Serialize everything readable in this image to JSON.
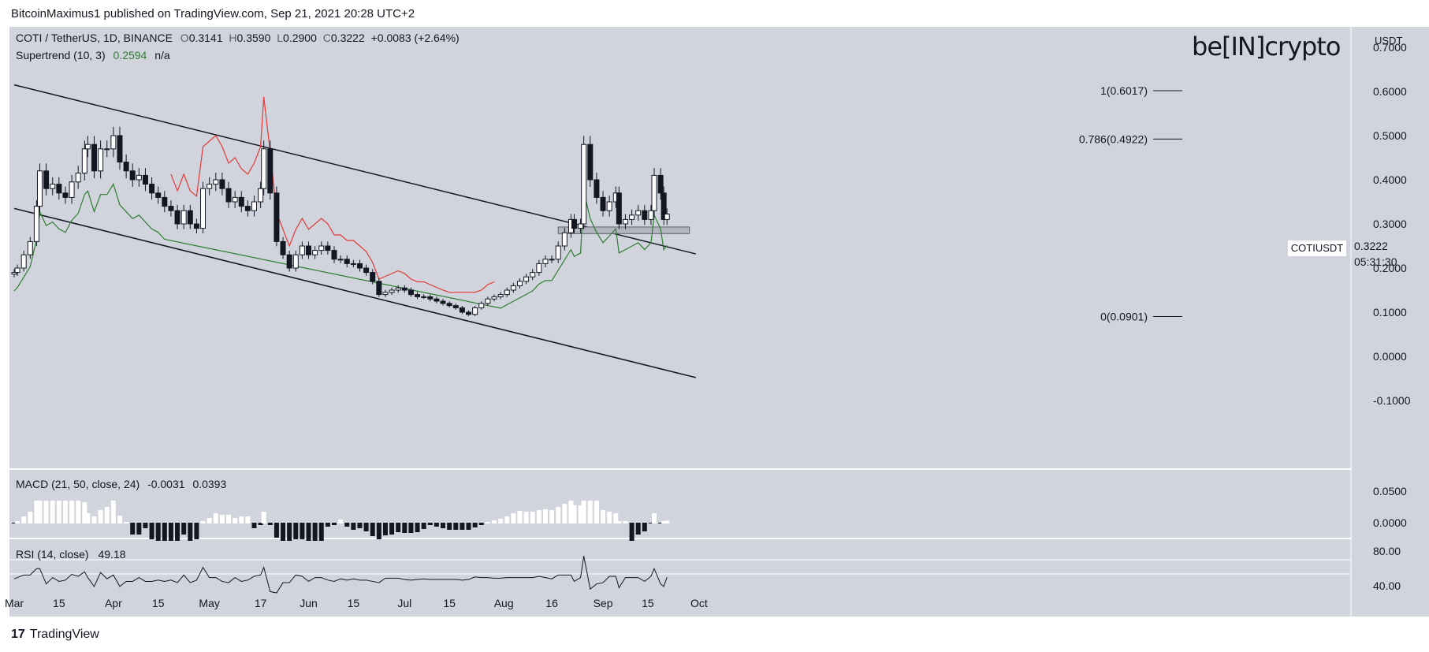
{
  "header": {
    "publish_text": "BitcoinMaximus1 published on TradingView.com, Sep 21, 2021 20:28 UTC+2"
  },
  "footer": {
    "brand": "TradingView"
  },
  "watermark": {
    "text": "be[IN]crypto"
  },
  "colors": {
    "background": "#d1d4dc",
    "candle": "#131722",
    "supertrend_up": "#2e7d32",
    "supertrend_down": "#e53935",
    "support_box": "#b2b5be"
  },
  "chart_data": [
    {
      "type": "candlestick",
      "title": "COTI / TetherUS, 1D, BINANCE",
      "ohlc": {
        "open_label": "O",
        "open": "0.3141",
        "high_label": "H",
        "high": "0.3590",
        "low_label": "L",
        "low": "0.2900",
        "close_label": "C",
        "close": "0.3222",
        "change": "+0.0083 (+2.64%)"
      },
      "indicator": {
        "name": "Supertrend (10, 3)",
        "value": "0.2594",
        "extra": "n/a"
      },
      "symbol_label": "COTIUSDT",
      "last_price": "0.3222",
      "countdown": "05:31:30",
      "currency": "USDT",
      "x_ticks": [
        "Mar",
        "15",
        "Apr",
        "15",
        "May",
        "17",
        "Jun",
        "15",
        "Jul",
        "15",
        "Aug",
        "16",
        "Sep",
        "15",
        "Oct"
      ],
      "y_ticks": [
        "0.7000",
        "0.6000",
        "0.5000",
        "0.4000",
        "0.3000",
        "0.2000",
        "0.1000",
        "0.0000",
        "-0.1000"
      ],
      "ylim": [
        -0.1,
        0.7
      ],
      "fib_levels": [
        {
          "label": "1(0.6017)",
          "value": 0.6017
        },
        {
          "label": "0.786(0.4922)",
          "value": 0.4922
        },
        {
          "label": "0(0.0901)",
          "value": 0.0901
        }
      ],
      "channel": {
        "upper": [
          [
            "2021-03-01",
            0.615
          ],
          [
            "2021-09-30",
            0.232
          ]
        ],
        "lower": [
          [
            "2021-03-01",
            0.335
          ],
          [
            "2021-09-30",
            -0.048
          ]
        ]
      },
      "support_zone": [
        0.278,
        0.293
      ],
      "closes": [
        [
          "2021-03-01",
          0.19
        ],
        [
          "2021-03-02",
          0.2
        ],
        [
          "2021-03-04",
          0.23
        ],
        [
          "2021-03-06",
          0.26
        ],
        [
          "2021-03-08",
          0.34
        ],
        [
          "2021-03-09",
          0.42
        ],
        [
          "2021-03-11",
          0.38
        ],
        [
          "2021-03-13",
          0.39
        ],
        [
          "2021-03-15",
          0.37
        ],
        [
          "2021-03-17",
          0.36
        ],
        [
          "2021-03-19",
          0.395
        ],
        [
          "2021-03-21",
          0.415
        ],
        [
          "2021-03-23",
          0.47
        ],
        [
          "2021-03-24",
          0.48
        ],
        [
          "2021-03-26",
          0.42
        ],
        [
          "2021-03-28",
          0.47
        ],
        [
          "2021-03-30",
          0.47
        ],
        [
          "2021-04-01",
          0.5
        ],
        [
          "2021-04-03",
          0.44
        ],
        [
          "2021-04-05",
          0.42
        ],
        [
          "2021-04-07",
          0.4
        ],
        [
          "2021-04-09",
          0.41
        ],
        [
          "2021-04-11",
          0.39
        ],
        [
          "2021-04-13",
          0.37
        ],
        [
          "2021-04-15",
          0.36
        ],
        [
          "2021-04-17",
          0.34
        ],
        [
          "2021-04-19",
          0.33
        ],
        [
          "2021-04-21",
          0.3
        ],
        [
          "2021-04-23",
          0.33
        ],
        [
          "2021-04-25",
          0.3
        ],
        [
          "2021-04-27",
          0.29
        ],
        [
          "2021-04-29",
          0.38
        ],
        [
          "2021-05-01",
          0.39
        ],
        [
          "2021-05-03",
          0.4
        ],
        [
          "2021-05-05",
          0.38
        ],
        [
          "2021-05-07",
          0.35
        ],
        [
          "2021-05-09",
          0.36
        ],
        [
          "2021-05-11",
          0.34
        ],
        [
          "2021-05-13",
          0.33
        ],
        [
          "2021-05-15",
          0.35
        ],
        [
          "2021-05-17",
          0.38
        ],
        [
          "2021-05-18",
          0.47
        ],
        [
          "2021-05-20",
          0.37
        ],
        [
          "2021-05-22",
          0.26
        ],
        [
          "2021-05-24",
          0.23
        ],
        [
          "2021-05-26",
          0.2
        ],
        [
          "2021-05-28",
          0.23
        ],
        [
          "2021-05-30",
          0.25
        ],
        [
          "2021-06-01",
          0.23
        ],
        [
          "2021-06-03",
          0.24
        ],
        [
          "2021-06-05",
          0.25
        ],
        [
          "2021-06-07",
          0.24
        ],
        [
          "2021-06-09",
          0.22
        ],
        [
          "2021-06-11",
          0.22
        ],
        [
          "2021-06-13",
          0.21
        ],
        [
          "2021-06-15",
          0.21
        ],
        [
          "2021-06-17",
          0.2
        ],
        [
          "2021-06-19",
          0.19
        ],
        [
          "2021-06-21",
          0.17
        ],
        [
          "2021-06-23",
          0.14
        ],
        [
          "2021-06-25",
          0.145
        ],
        [
          "2021-06-27",
          0.15
        ],
        [
          "2021-06-29",
          0.155
        ],
        [
          "2021-07-01",
          0.15
        ],
        [
          "2021-07-03",
          0.14
        ],
        [
          "2021-07-05",
          0.135
        ],
        [
          "2021-07-07",
          0.135
        ],
        [
          "2021-07-09",
          0.13
        ],
        [
          "2021-07-11",
          0.125
        ],
        [
          "2021-07-13",
          0.12
        ],
        [
          "2021-07-15",
          0.115
        ],
        [
          "2021-07-17",
          0.11
        ],
        [
          "2021-07-19",
          0.1
        ],
        [
          "2021-07-21",
          0.095
        ],
        [
          "2021-07-23",
          0.11
        ],
        [
          "2021-07-25",
          0.12
        ],
        [
          "2021-07-27",
          0.13
        ],
        [
          "2021-07-29",
          0.135
        ],
        [
          "2021-07-31",
          0.14
        ],
        [
          "2021-08-02",
          0.15
        ],
        [
          "2021-08-04",
          0.16
        ],
        [
          "2021-08-06",
          0.17
        ],
        [
          "2021-08-08",
          0.18
        ],
        [
          "2021-08-10",
          0.19
        ],
        [
          "2021-08-12",
          0.21
        ],
        [
          "2021-08-14",
          0.22
        ],
        [
          "2021-08-16",
          0.22
        ],
        [
          "2021-08-18",
          0.25
        ],
        [
          "2021-08-20",
          0.28
        ],
        [
          "2021-08-22",
          0.31
        ],
        [
          "2021-08-23",
          0.29
        ],
        [
          "2021-08-25",
          0.3
        ],
        [
          "2021-08-26",
          0.48
        ],
        [
          "2021-08-28",
          0.4
        ],
        [
          "2021-08-30",
          0.36
        ],
        [
          "2021-09-01",
          0.33
        ],
        [
          "2021-09-03",
          0.35
        ],
        [
          "2021-09-05",
          0.37
        ],
        [
          "2021-09-06",
          0.3
        ],
        [
          "2021-09-08",
          0.31
        ],
        [
          "2021-09-10",
          0.32
        ],
        [
          "2021-09-12",
          0.33
        ],
        [
          "2021-09-14",
          0.31
        ],
        [
          "2021-09-16",
          0.33
        ],
        [
          "2021-09-17",
          0.41
        ],
        [
          "2021-09-19",
          0.37
        ],
        [
          "2021-09-20",
          0.31
        ],
        [
          "2021-09-21",
          0.3222
        ]
      ]
    },
    {
      "type": "macd",
      "label": "MACD (21, 50, close, 24)",
      "values": [
        "-0.0031",
        "0.0393"
      ],
      "y_ticks": [
        "0.0500",
        "0.0000"
      ]
    },
    {
      "type": "rsi",
      "label": "RSI (14, close)",
      "value": "49.18",
      "y_ticks": [
        "80.00",
        "40.00"
      ]
    }
  ]
}
